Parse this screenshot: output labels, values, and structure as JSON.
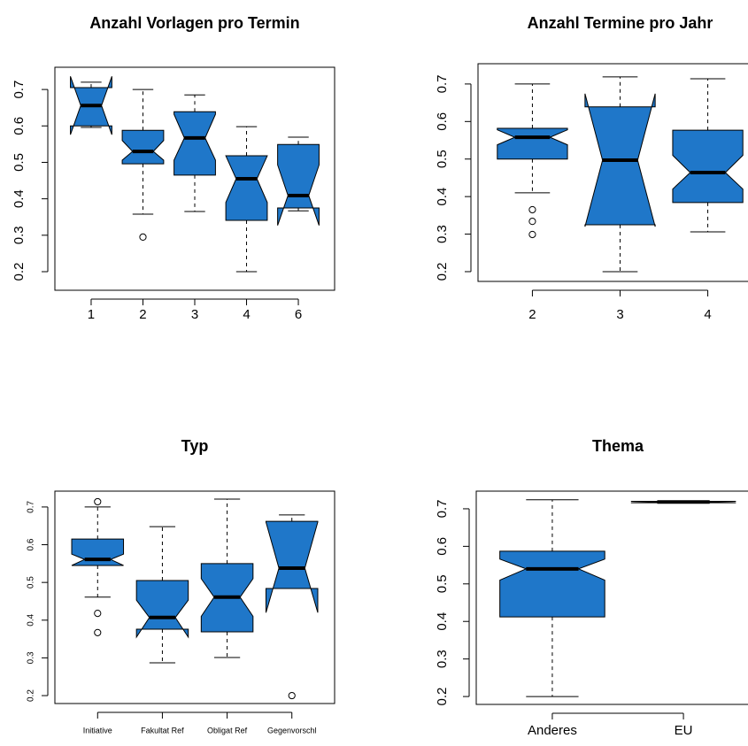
{
  "chart_data": [
    {
      "type": "boxplot",
      "title": "Anzahl Vorlagen pro Termin",
      "color": "#1f77c9",
      "categories": [
        "1",
        "2",
        "3",
        "4",
        "6"
      ],
      "boxes": [
        {
          "whisker_low": 0.596,
          "q1": 0.6,
          "median": 0.656,
          "q3": 0.705,
          "whisker_high": 0.72,
          "notch": [
            0.576,
            0.736
          ],
          "outliers": []
        },
        {
          "whisker_low": 0.358,
          "q1": 0.496,
          "median": 0.53,
          "q3": 0.588,
          "whisker_high": 0.7,
          "notch": [
            0.506,
            0.56
          ],
          "outliers": [
            0.295
          ]
        },
        {
          "whisker_low": 0.365,
          "q1": 0.465,
          "median": 0.567,
          "q3": 0.639,
          "whisker_high": 0.685,
          "notch": [
            0.506,
            0.632
          ],
          "outliers": []
        },
        {
          "whisker_low": 0.2,
          "q1": 0.341,
          "median": 0.455,
          "q3": 0.518,
          "whisker_high": 0.598,
          "notch": [
            0.39,
            0.518
          ],
          "outliers": []
        },
        {
          "whisker_low": 0.367,
          "q1": 0.375,
          "median": 0.409,
          "q3": 0.549,
          "whisker_high": 0.569,
          "notch": [
            0.327,
            0.493
          ],
          "outliers": []
        }
      ],
      "ylim": [
        0.149,
        0.761
      ],
      "yticks": [
        0.2,
        0.3,
        0.4,
        0.5,
        0.6,
        0.7
      ]
    },
    {
      "type": "boxplot",
      "title": "Anzahl Termine pro Jahr",
      "color": "#1f77c9",
      "categories": [
        "2",
        "3",
        "4"
      ],
      "boxes": [
        {
          "whisker_low": 0.41,
          "q1": 0.5,
          "median": 0.558,
          "q3": 0.582,
          "whisker_high": 0.7,
          "notch": [
            0.538,
            0.578
          ],
          "outliers": [
            0.365,
            0.334,
            0.299
          ]
        },
        {
          "whisker_low": 0.2,
          "q1": 0.325,
          "median": 0.497,
          "q3": 0.639,
          "whisker_high": 0.719,
          "notch": [
            0.32,
            0.674
          ],
          "outliers": []
        },
        {
          "whisker_low": 0.306,
          "q1": 0.384,
          "median": 0.464,
          "q3": 0.577,
          "whisker_high": 0.714,
          "notch": [
            0.42,
            0.51
          ],
          "outliers": []
        }
      ],
      "ylim": [
        0.174,
        0.754
      ],
      "yticks": [
        0.2,
        0.3,
        0.4,
        0.5,
        0.6,
        0.7
      ]
    },
    {
      "type": "boxplot",
      "title": "Typ",
      "color": "#1f77c9",
      "categories": [
        "Initiative",
        "Fakultat Ref",
        "Obligat Ref",
        "Gegenvorschl"
      ],
      "boxes": [
        {
          "whisker_low": 0.461,
          "q1": 0.545,
          "median": 0.561,
          "q3": 0.615,
          "whisker_high": 0.7,
          "notch": [
            0.545,
            0.575
          ],
          "outliers": [
            0.714,
            0.418,
            0.367
          ]
        },
        {
          "whisker_low": 0.287,
          "q1": 0.376,
          "median": 0.407,
          "q3": 0.505,
          "whisker_high": 0.648,
          "notch": [
            0.355,
            0.453
          ],
          "outliers": []
        },
        {
          "whisker_low": 0.301,
          "q1": 0.369,
          "median": 0.461,
          "q3": 0.55,
          "whisker_high": 0.721,
          "notch": [
            0.41,
            0.51
          ],
          "outliers": []
        },
        {
          "whisker_low": 0.484,
          "q1": 0.484,
          "median": 0.538,
          "q3": 0.662,
          "whisker_high": 0.679,
          "notch": [
            0.42,
            0.66
          ],
          "outliers": [
            0.2
          ]
        }
      ],
      "ylim": [
        0.179,
        0.742
      ],
      "yticks": [
        0.2,
        0.3,
        0.4,
        0.5,
        0.6,
        0.7
      ]
    },
    {
      "type": "boxplot",
      "title": "Thema",
      "color": "#1f77c9",
      "categories": [
        "Anderes",
        "EU"
      ],
      "boxes": [
        {
          "whisker_low": 0.2,
          "q1": 0.412,
          "median": 0.54,
          "q3": 0.587,
          "whisker_high": 0.724,
          "notch": [
            0.51,
            0.566
          ],
          "outliers": []
        },
        {
          "whisker_low": 0.716,
          "q1": 0.716,
          "median": 0.718,
          "q3": 0.72,
          "whisker_high": 0.72,
          "notch": [
            0.716,
            0.72
          ],
          "outliers": []
        }
      ],
      "ylim": [
        0.179,
        0.747
      ],
      "yticks": [
        0.2,
        0.3,
        0.4,
        0.5,
        0.6,
        0.7
      ]
    }
  ]
}
